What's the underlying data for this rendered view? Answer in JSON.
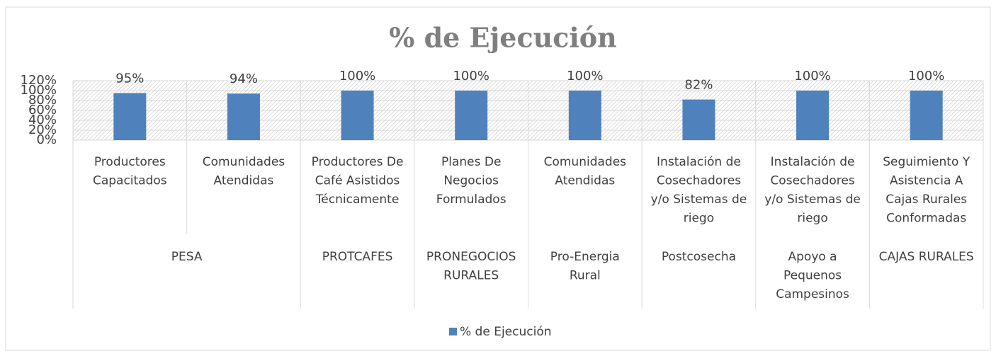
{
  "chart_data": {
    "type": "bar",
    "title": "% de Ejecución",
    "categories": [
      "Productores\nCapacitados",
      "Comunidades\nAtendidas",
      "Productores De\nCafé Asistidos\nTécnicamente",
      "Planes De\nNegocios\nFormulados",
      "Comunidades\nAtendidas",
      "Instalación de\nCosechadores\ny/o Sistemas de\nriego",
      "Instalación de\nCosechadores\ny/o Sistemas de\nriego",
      "Seguimiento Y\nAsistencia A\nCajas Rurales\nConformadas"
    ],
    "group_labels": [
      "PESA",
      null,
      "PROTCAFES",
      "PRONEGOCIOS\nRURALES",
      "Pro-Energia\nRural",
      "Postcosecha",
      "Apoyo a\nPequenos\nCampesinos",
      "CAJAS RURALES"
    ],
    "series": [
      {
        "name": "% de Ejecución",
        "color": "#4f81bd",
        "values": [
          95,
          94,
          100,
          100,
          100,
          82,
          100,
          100
        ],
        "value_labels": [
          "95%",
          "94%",
          "100%",
          "100%",
          "100%",
          "82%",
          "100%",
          "100%"
        ]
      }
    ],
    "ylim": [
      0,
      120
    ],
    "yticks": [
      {
        "value": 0,
        "label": "0%"
      },
      {
        "value": 20,
        "label": "20%"
      },
      {
        "value": 40,
        "label": "40%"
      },
      {
        "value": 60,
        "label": "60%"
      },
      {
        "value": 80,
        "label": "80%"
      },
      {
        "value": 100,
        "label": "100%"
      },
      {
        "value": 120,
        "label": "120%"
      }
    ],
    "grid": true,
    "legend": "bottom"
  }
}
